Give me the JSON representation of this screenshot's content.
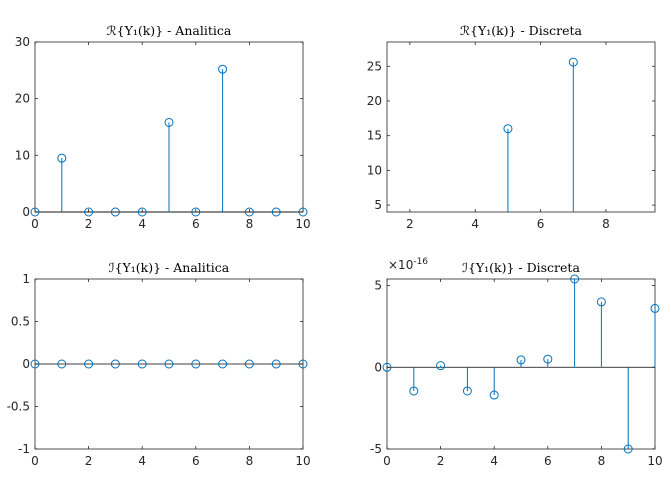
{
  "chart_data": [
    {
      "type": "stem",
      "title": "ℛ{Y₁(k)} - Analitica",
      "xlim": [
        0,
        10
      ],
      "ylim": [
        0,
        30
      ],
      "xticks": [
        0,
        2,
        4,
        6,
        8,
        10
      ],
      "yticks": [
        0,
        10,
        20,
        30
      ],
      "x": [
        0,
        1,
        2,
        3,
        4,
        5,
        6,
        7,
        8,
        9,
        10
      ],
      "y": [
        0,
        9.5,
        0,
        0,
        0,
        15.8,
        0,
        25.2,
        0,
        0,
        0
      ],
      "color": "#0072bd"
    },
    {
      "type": "stem",
      "title": "ℛ{Y₁(k)} - Discreta",
      "xlim": [
        1.3,
        9.5
      ],
      "ylim": [
        4,
        28.5
      ],
      "xticks": [
        2,
        4,
        6,
        8
      ],
      "yticks": [
        5,
        10,
        15,
        20,
        25
      ],
      "x": [
        5,
        7
      ],
      "y": [
        16.0,
        25.6
      ],
      "color": "#0072bd"
    },
    {
      "type": "stem",
      "title": "ℐ{Y₁(k)} - Analitica",
      "xlim": [
        0,
        10
      ],
      "ylim": [
        -1,
        1
      ],
      "xticks": [
        0,
        2,
        4,
        6,
        8,
        10
      ],
      "yticks": [
        -1,
        -0.5,
        0,
        0.5,
        1
      ],
      "x": [
        0,
        1,
        2,
        3,
        4,
        5,
        6,
        7,
        8,
        9,
        10
      ],
      "y": [
        0,
        0,
        0,
        0,
        0,
        0,
        0,
        0,
        0,
        0,
        0
      ],
      "color": "#0072bd"
    },
    {
      "type": "stem",
      "title": "ℐ{Y₁(k)} - Discreta",
      "xlim": [
        0,
        10
      ],
      "ylim": [
        -5,
        5.4
      ],
      "xticks": [
        0,
        2,
        4,
        6,
        8,
        10
      ],
      "yticks": [
        -5,
        0,
        5
      ],
      "y_exponent_label": "×10",
      "y_exponent_power": "-16",
      "x": [
        0,
        1,
        2,
        3,
        4,
        5,
        6,
        7,
        8,
        9,
        10
      ],
      "y": [
        0,
        -1.45,
        0.1,
        -1.45,
        -1.7,
        0.45,
        0.5,
        5.4,
        4.0,
        -5.0,
        3.6
      ],
      "color": "#0072bd"
    }
  ]
}
